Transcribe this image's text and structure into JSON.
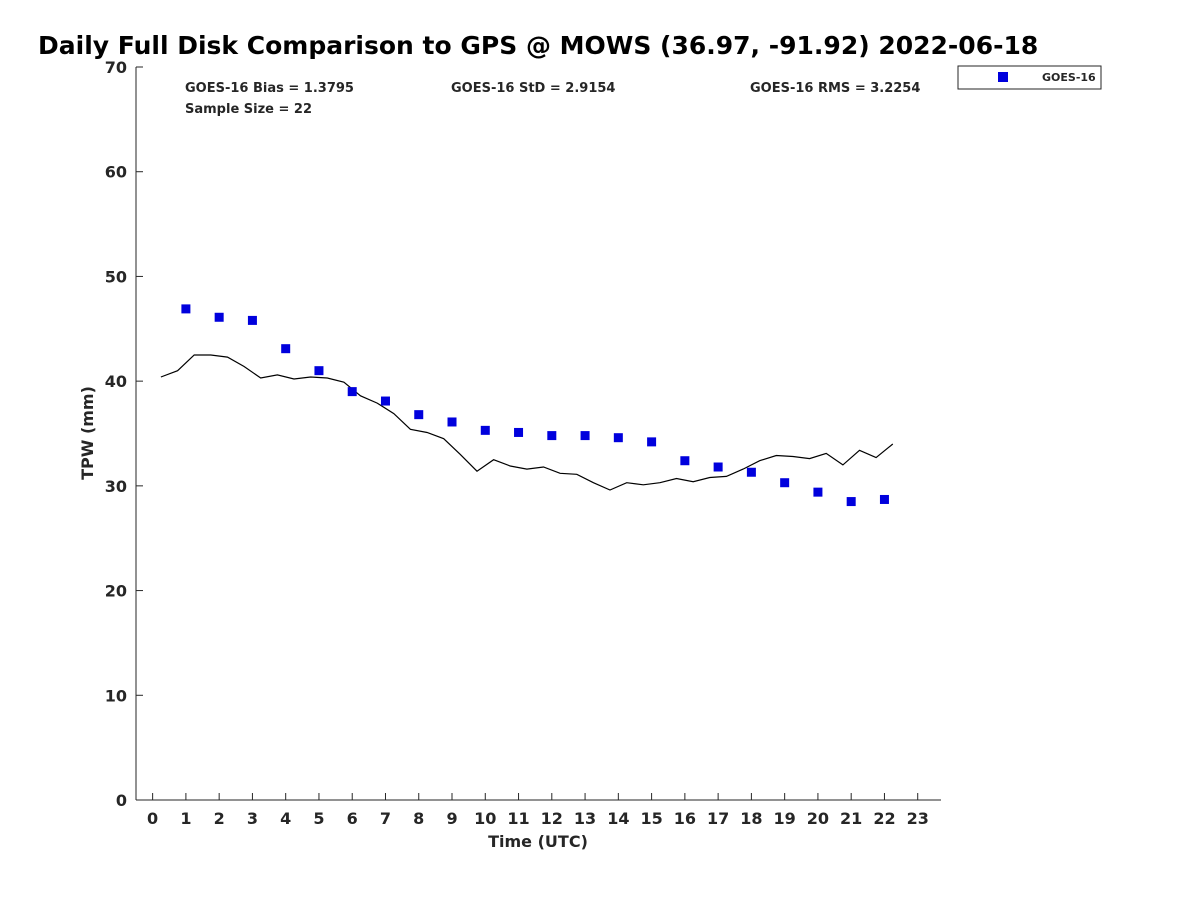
{
  "chart_data": {
    "type": "scatter",
    "title": "Daily Full Disk Comparison to GPS @ MOWS (36.97, -91.92) 2022-06-18",
    "xlabel": "Time (UTC)",
    "ylabel": "TPW (mm)",
    "xlim": [
      -0.5,
      23.7
    ],
    "ylim": [
      0,
      70
    ],
    "x_ticks": [
      "0",
      "1",
      "2",
      "3",
      "4",
      "5",
      "6",
      "7",
      "8",
      "9",
      "10",
      "11",
      "12",
      "13",
      "14",
      "15",
      "16",
      "17",
      "18",
      "19",
      "20",
      "21",
      "22",
      "23"
    ],
    "y_ticks": [
      "0",
      "10",
      "20",
      "30",
      "40",
      "50",
      "60",
      "70"
    ],
    "grid": false,
    "legend": {
      "position": "top-right",
      "entries": [
        "GOES-16"
      ]
    },
    "stats": {
      "bias": "GOES-16 Bias = 1.3795",
      "std": "GOES-16 StD = 2.9154",
      "rms": "GOES-16 RMS = 3.2254",
      "sample": "Sample Size = 22"
    },
    "series": [
      {
        "name": "GOES-16",
        "kind": "scatter",
        "marker": "square",
        "color": "#0000dd",
        "x": [
          1,
          2,
          3,
          4,
          5,
          6,
          7,
          8,
          9,
          10,
          11,
          12,
          13,
          14,
          15,
          16,
          17,
          18,
          19,
          20,
          21,
          22
        ],
        "y": [
          46.9,
          46.1,
          45.8,
          43.1,
          41.0,
          39.0,
          38.1,
          36.8,
          36.1,
          35.3,
          35.1,
          34.8,
          34.8,
          34.6,
          34.2,
          32.4,
          31.8,
          31.3,
          30.3,
          29.4,
          28.5,
          28.7
        ]
      },
      {
        "kind": "line",
        "color": "#000000",
        "x": [
          0.25,
          0.75,
          1.25,
          1.75,
          2.25,
          2.75,
          3.25,
          3.75,
          4.25,
          4.75,
          5.25,
          5.75,
          6.25,
          6.75,
          7.25,
          7.75,
          8.25,
          8.75,
          9.25,
          9.75,
          10.25,
          10.75,
          11.25,
          11.75,
          12.25,
          12.75,
          13.25,
          13.75,
          14.25,
          14.75,
          15.25,
          15.75,
          16.25,
          16.75,
          17.25,
          17.75,
          18.25,
          18.75,
          19.25,
          19.75,
          20.25,
          20.75,
          21.25,
          21.75,
          22.25
        ],
        "y": [
          40.4,
          41.0,
          42.5,
          42.5,
          42.3,
          41.4,
          40.3,
          40.6,
          40.2,
          40.4,
          40.3,
          39.9,
          38.6,
          37.9,
          36.9,
          35.4,
          35.1,
          34.5,
          33.0,
          31.4,
          32.5,
          31.9,
          31.6,
          31.8,
          31.2,
          31.1,
          30.3,
          29.6,
          30.3,
          30.1,
          30.3,
          30.7,
          30.4,
          30.8,
          30.9,
          31.6,
          32.4,
          32.9,
          32.8,
          32.6,
          33.1,
          32.0,
          33.4,
          32.7,
          34.0
        ]
      }
    ]
  }
}
